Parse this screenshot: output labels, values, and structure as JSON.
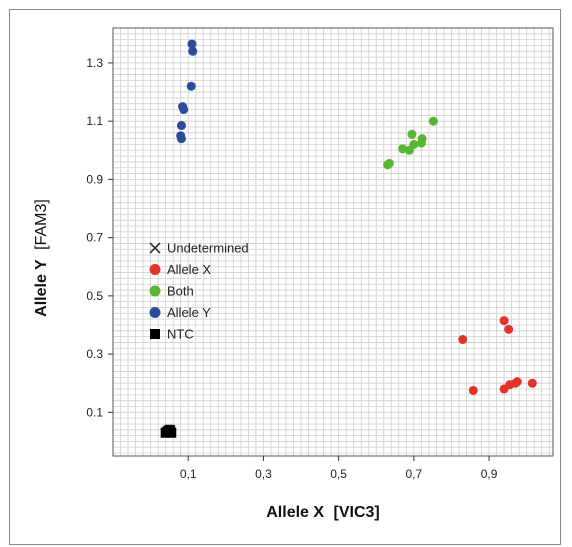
{
  "chart_data": {
    "type": "scatter",
    "title": "",
    "xlabel": "Allele X [VIC3]",
    "xlabel_bold": "Allele X",
    "xlabel_unit": "[VIC3]",
    "ylabel": "Allele Y [FAM3]",
    "ylabel_bold": "Allele Y",
    "ylabel_unit": "[FAM3]",
    "xlim": [
      -0.1,
      1.07
    ],
    "ylim": [
      -0.05,
      1.42
    ],
    "xticks": [
      0.1,
      0.3,
      0.5,
      0.7,
      0.9
    ],
    "xtick_labels": [
      "0,1",
      "0,3",
      "0,5",
      "0,7",
      "0,9"
    ],
    "yticks": [
      0.1,
      0.3,
      0.5,
      0.7,
      0.9,
      1.1,
      1.3
    ],
    "ytick_labels": [
      "0.1",
      "0.3",
      "0.5",
      "0.7",
      "0.9",
      "1.1",
      "1.3"
    ],
    "grid": true,
    "legend_position": "center-left",
    "series": [
      {
        "name": "Undetermined",
        "marker": "x",
        "color": "#333333",
        "points": []
      },
      {
        "name": "Allele X",
        "marker": "circle",
        "color": "#e2322a",
        "points": [
          [
            0.83,
            0.35
          ],
          [
            0.858,
            0.175
          ],
          [
            0.94,
            0.415
          ],
          [
            0.952,
            0.385
          ],
          [
            0.94,
            0.18
          ],
          [
            0.955,
            0.195
          ],
          [
            0.97,
            0.2
          ],
          [
            0.975,
            0.205
          ],
          [
            1.015,
            0.2
          ]
        ]
      },
      {
        "name": "Both",
        "marker": "circle",
        "color": "#5ab632",
        "points": [
          [
            0.63,
            0.95
          ],
          [
            0.635,
            0.955
          ],
          [
            0.67,
            1.005
          ],
          [
            0.688,
            1.0
          ],
          [
            0.695,
            1.055
          ],
          [
            0.7,
            1.02
          ],
          [
            0.72,
            1.025
          ],
          [
            0.722,
            1.04
          ],
          [
            0.752,
            1.1
          ]
        ]
      },
      {
        "name": "Allele Y",
        "marker": "circle",
        "color": "#2e4a9b",
        "points": [
          [
            0.11,
            1.365
          ],
          [
            0.112,
            1.34
          ],
          [
            0.108,
            1.22
          ],
          [
            0.088,
            1.14
          ],
          [
            0.085,
            1.15
          ],
          [
            0.082,
            1.085
          ],
          [
            0.08,
            1.05
          ],
          [
            0.082,
            1.04
          ]
        ]
      },
      {
        "name": "NTC",
        "marker": "square",
        "color": "#000000",
        "points": [
          [
            0.045,
            0.035
          ],
          [
            0.05,
            0.04
          ],
          [
            0.055,
            0.03
          ],
          [
            0.04,
            0.03
          ],
          [
            0.052,
            0.038
          ]
        ]
      }
    ]
  }
}
